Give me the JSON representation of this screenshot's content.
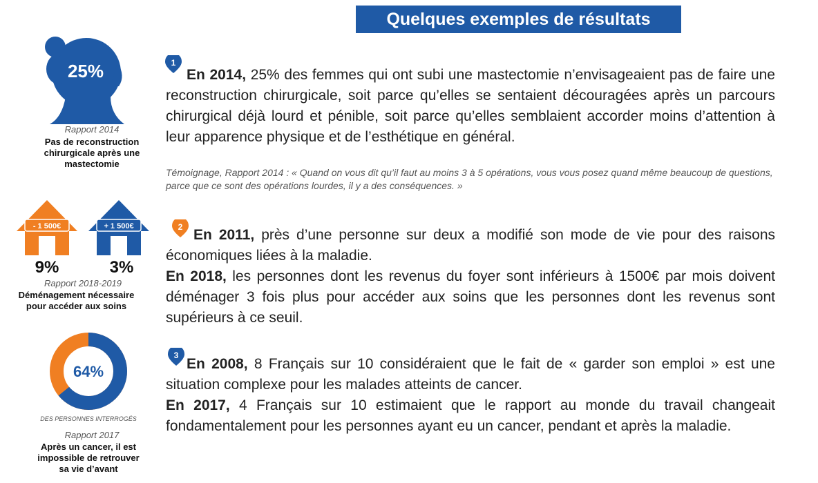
{
  "title": "Quelques exemples de résultats",
  "items": [
    {
      "number": "1",
      "figure": {
        "label": "25%",
        "source": "Rapport 2014",
        "caption": "Pas de reconstruction chirurgicale après une mastectomie"
      },
      "paragraphs": [
        {
          "lead": "En 2014,",
          "text": "25% des femmes qui ont subi une mastectomie n’envisageaient pas de faire une reconstruction chirurgicale, soit parce qu’elles se sentaient découragées après un parcours chirurgical déjà lourd et pénible, soit parce qu’elles semblaient accorder moins d’attention à leur apparence physique et de l’esthétique en général."
        }
      ],
      "testimony": "Témoignage, Rapport 2014 : « Quand on vous dit qu’il faut au moins 3 à 5 opérations, vous vous posez quand même beaucoup de questions, parce que ce sont des opérations lourdes, il y a des conséquences. »"
    },
    {
      "number": "2",
      "figure": {
        "houses": [
          {
            "tag": "- 1 500€",
            "label": "9%"
          },
          {
            "tag": "+ 1 500€",
            "label": "3%"
          }
        ],
        "source": "Rapport 2018-2019",
        "caption": "Déménagement nécessaire pour accéder aux soins"
      },
      "paragraphs": [
        {
          "lead": "En 2011,",
          "text": "près d’une personne sur deux a modifié son mode de vie pour des raisons économiques liées à la maladie."
        },
        {
          "lead": "En 2018,",
          "text": "les personnes dont les revenus du foyer sont inférieurs à 1500€ par mois doivent déménager 3 fois plus pour accéder aux soins que les personnes dont les revenus sont supérieurs à ce seuil."
        }
      ]
    },
    {
      "number": "3",
      "figure": {
        "value": 64,
        "label": "64%",
        "note": "DES PERSONNES INTERROGÉS",
        "source": "Rapport 2017",
        "caption": "Après un cancer, il est impossible de retrouver sa vie d’avant"
      },
      "paragraphs": [
        {
          "lead": "En 2008,",
          "text": "8 Français sur 10 considéraient que le fait de « garder son emploi » est une situation complexe pour les malades atteints de cancer."
        },
        {
          "lead": "En 2017,",
          "text": "4 Français sur 10 estimaient que le rapport au monde du travail changeait fondamentalement pour les personnes ayant eu un cancer, pendant et après la maladie."
        }
      ]
    }
  ]
}
